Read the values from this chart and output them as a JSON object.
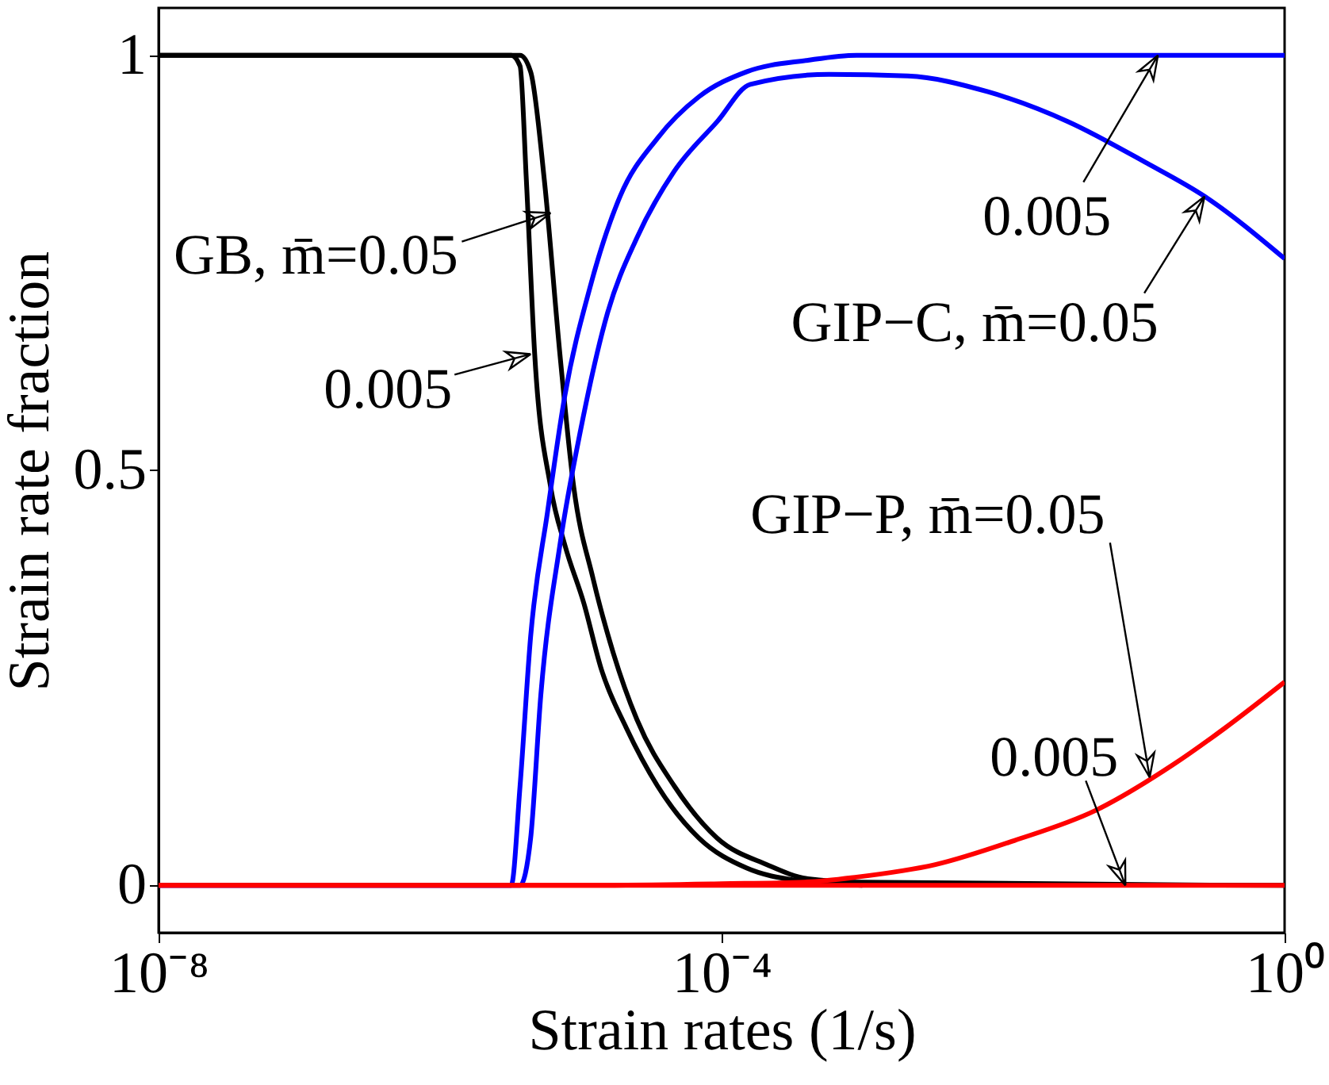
{
  "chart_data": {
    "type": "line",
    "xlabel": "Strain rates (1/s)",
    "ylabel": "Strain rate fraction",
    "log": "x",
    "xlim": [
      1e-08,
      1
    ],
    "ylim": [
      -0.057,
      1.057
    ],
    "xticks": [
      {
        "value": 1e-08,
        "label": "10⁻⁸"
      },
      {
        "value": 0.0001,
        "label": "10⁻⁴"
      },
      {
        "value": 1,
        "label": "10⁰"
      }
    ],
    "yticks": [
      {
        "value": 0,
        "label": "0"
      },
      {
        "value": 0.5,
        "label": "0.5"
      },
      {
        "value": 1,
        "label": "1"
      }
    ],
    "grid": false,
    "marker": "none",
    "line_style": "solid",
    "series": [
      {
        "color": "#000000",
        "x": [
          1e-08,
          3.7e-06,
          4.4e-06,
          5.5e-06,
          7.1e-06,
          8.9e-06,
          1.22e-05,
          1.7e-05,
          2.5e-05,
          4.6e-05,
          9.3e-05,
          0.00021,
          0.00041,
          0.00091,
          1
        ],
        "values": [
          1,
          1,
          0.98,
          0.85,
          0.64,
          0.48,
          0.37,
          0.28,
          0.2,
          0.12,
          0.057,
          0.025,
          0.008,
          0.004,
          0
        ]
      },
      {
        "color": "#000000",
        "x": [
          1e-08,
          3.2e-06,
          3.7e-06,
          4.1e-06,
          4.7e-06,
          6.1e-06,
          7.7e-06,
          1.05e-05,
          1.4e-05,
          2.1e-05,
          3.5e-05,
          6.9e-05,
          0.00015,
          0.00034,
          0.001
        ],
        "values": [
          1,
          1,
          0.987,
          0.85,
          0.64,
          0.48,
          0.41,
          0.34,
          0.26,
          0.19,
          0.12,
          0.057,
          0.021,
          0.006,
          0
        ]
      },
      {
        "color": "#0000ff",
        "x": [
          1e-08,
          3.2e-06,
          3.7e-06,
          4.4e-06,
          5.8e-06,
          7.7e-06,
          1.16e-05,
          1.9e-05,
          3.5e-05,
          6.9e-05,
          0.00015,
          0.00041,
          0.00091,
          1
        ],
        "values": [
          0,
          0,
          0.12,
          0.3,
          0.45,
          0.59,
          0.72,
          0.83,
          0.9,
          0.95,
          0.98,
          0.994,
          1,
          1
        ]
      },
      {
        "color": "#0000ff",
        "x": [
          1e-08,
          3.7e-06,
          4.4e-06,
          5.2e-06,
          7.1e-06,
          1e-05,
          1.55e-05,
          2.5e-05,
          4.6e-05,
          9.3e-05,
          0.00016,
          0.00058,
          0.0021,
          0.0078,
          0.029,
          0.105,
          0.27,
          1
        ],
        "values": [
          0,
          0,
          0.057,
          0.23,
          0.41,
          0.55,
          0.69,
          0.78,
          0.86,
          0.92,
          0.965,
          0.977,
          0.975,
          0.956,
          0.92,
          0.87,
          0.83,
          0.755
        ]
      },
      {
        "color": "#ff0000",
        "x": [
          1e-08,
          1e-05,
          0.0001,
          0.00039,
          0.00091,
          0.0033,
          0.012,
          0.045,
          0.16,
          0.38,
          1
        ],
        "values": [
          0,
          0,
          0.002,
          0.004,
          0.01,
          0.025,
          0.054,
          0.09,
          0.145,
          0.19,
          0.245
        ]
      },
      {
        "color": "#ff0000",
        "x": [
          1e-08,
          1
        ],
        "values": [
          0,
          0
        ]
      }
    ],
    "annotations": [
      {
        "text": "GB, m̄=0.05",
        "x": 6.1e-06,
        "y": 0.81
      },
      {
        "text": "0.005",
        "x": 4.4e-06,
        "y": 0.64
      },
      {
        "text": "0.005",
        "x": 0.126,
        "y": 1
      },
      {
        "text": "GIP−C, m̄=0.05",
        "x": 0.27,
        "y": 0.83
      },
      {
        "text": "GIP−P, m̄=0.05",
        "x": 0.11,
        "y": 0.13
      },
      {
        "text": "0.005",
        "x": 0.074,
        "y": 0
      }
    ]
  }
}
